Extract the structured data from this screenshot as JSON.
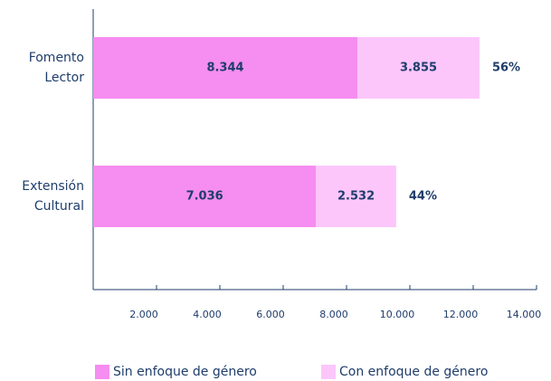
{
  "chart_data": {
    "type": "stacked_barh",
    "categories": [
      "Fomento Lector",
      "Extensión Cultural"
    ],
    "series": [
      {
        "name": "Sin enfoque de género",
        "color": "#f68df0",
        "values": [
          8344,
          7036
        ],
        "value_labels": [
          "8.344",
          "7.036"
        ]
      },
      {
        "name": "Con enfoque de género",
        "color": "#fcc6fb",
        "values": [
          3855,
          2532
        ],
        "value_labels": [
          "3.855",
          "2.532"
        ]
      }
    ],
    "annotations": [
      "56%",
      "44%"
    ],
    "xlim": [
      0,
      14000
    ],
    "xticks": [
      {
        "value": 2000,
        "label": "2.000"
      },
      {
        "value": 4000,
        "label": "4.000"
      },
      {
        "value": 6000,
        "label": "6.000"
      },
      {
        "value": 8000,
        "label": "8.000"
      },
      {
        "value": 10000,
        "label": "10.000"
      },
      {
        "value": 12000,
        "label": "12.000"
      },
      {
        "value": 14000,
        "label": "14.000"
      }
    ]
  }
}
